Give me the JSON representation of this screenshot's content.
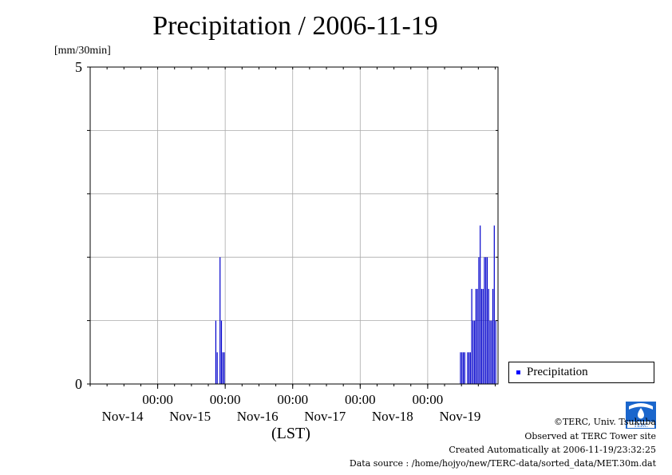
{
  "title": "Precipitation / 2006-11-19",
  "unit_label": "[mm/30min]",
  "lst_label": "(LST)",
  "legend_label": "Precipitation",
  "credits": {
    "copyright": "©TERC, Univ. Tsukuba",
    "site": "Observed at TERC Tower site",
    "created": "Created Automatically at 2006-11-19/23:32:25",
    "source": "Data source : /home/hojyo/new/TERC-data/sorted_data/MET.30m.dat"
  },
  "logo_text": "TERC",
  "colors": {
    "bars": "#0000cc",
    "grid": "#aaaaaa",
    "legend_swatch": "#0000ff"
  },
  "chart_data": {
    "type": "bar",
    "title": "Precipitation / 2006-11-19",
    "ylabel": "[mm/30min]",
    "xlabel": "(LST)",
    "ylim": [
      0,
      5
    ],
    "ytick_labels": [
      "0",
      "5"
    ],
    "y_grid": [
      1,
      2,
      3,
      4
    ],
    "x_range_hours": [
      -1,
      144
    ],
    "x_ticks": [
      {
        "hour": 23,
        "time": "00:00",
        "date": "Nov-14"
      },
      {
        "hour": 47,
        "time": "00:00",
        "date": "Nov-15"
      },
      {
        "hour": 71,
        "time": "00:00",
        "date": "Nov-16"
      },
      {
        "hour": 95,
        "time": "00:00",
        "date": "Nov-17"
      },
      {
        "hour": 119,
        "time": "00:00",
        "date": "Nov-18"
      },
      {
        "hour": "",
        "time": "",
        "date": "Nov-19"
      }
    ],
    "series": [
      {
        "name": "Precipitation",
        "x_hours": [
          43.5,
          44.0,
          45.0,
          45.5,
          46.0,
          46.5,
          130.5,
          131.0,
          131.5,
          132.0,
          133.0,
          133.5,
          134.0,
          134.5,
          135.0,
          135.5,
          136.0,
          136.5,
          137.0,
          137.5,
          138.0,
          138.5,
          139.0,
          139.5,
          140.0,
          140.5,
          141.0,
          141.5,
          142.0,
          142.5,
          143.0
        ],
        "values": [
          1.0,
          0.5,
          2.0,
          1.0,
          0.5,
          0.5,
          0.5,
          0.5,
          0.5,
          0.5,
          0.5,
          0.5,
          0.5,
          1.5,
          1.0,
          1.0,
          1.5,
          1.5,
          2.0,
          2.5,
          1.5,
          1.5,
          2.0,
          2.0,
          2.0,
          1.5,
          1.0,
          1.0,
          1.5,
          2.5,
          1.0
        ]
      }
    ]
  }
}
